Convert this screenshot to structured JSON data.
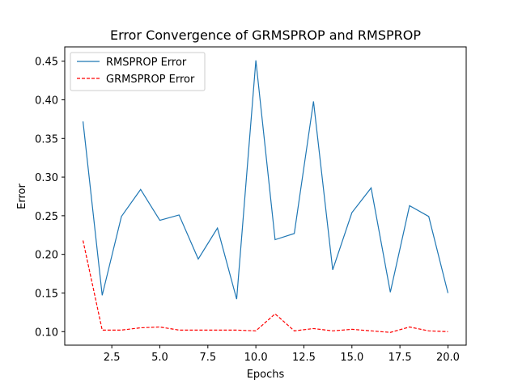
{
  "chart_data": {
    "type": "line",
    "title": "Error Convergence of GRMSPROP and RMSPROP",
    "xlabel": "Epochs",
    "ylabel": "Error",
    "xlim": [
      0.05,
      20.95
    ],
    "ylim": [
      0.0825,
      0.4685
    ],
    "xticks": [
      2.5,
      5.0,
      7.5,
      10.0,
      12.5,
      15.0,
      17.5,
      20.0
    ],
    "xtick_labels": [
      "2.5",
      "5.0",
      "7.5",
      "10.0",
      "12.5",
      "15.0",
      "17.5",
      "20.0"
    ],
    "yticks": [
      0.1,
      0.15,
      0.2,
      0.25,
      0.3,
      0.35,
      0.4,
      0.45
    ],
    "ytick_labels": [
      "0.10",
      "0.15",
      "0.20",
      "0.25",
      "0.30",
      "0.35",
      "0.40",
      "0.45"
    ],
    "grid": false,
    "legend": "upper-left",
    "x": [
      1,
      2,
      3,
      4,
      5,
      6,
      7,
      8,
      9,
      10,
      11,
      12,
      13,
      14,
      15,
      16,
      17,
      18,
      19,
      20
    ],
    "series": [
      {
        "name": "RMSPROP Error",
        "color": "#1f77b4",
        "style": "solid",
        "values": [
          0.372,
          0.147,
          0.249,
          0.284,
          0.244,
          0.251,
          0.194,
          0.234,
          0.142,
          0.451,
          0.219,
          0.227,
          0.398,
          0.18,
          0.254,
          0.286,
          0.151,
          0.263,
          0.249,
          0.15
        ]
      },
      {
        "name": "GRMSPROP Error",
        "color": "#ff0000",
        "style": "dashed",
        "values": [
          0.218,
          0.102,
          0.102,
          0.105,
          0.106,
          0.102,
          0.102,
          0.102,
          0.102,
          0.101,
          0.123,
          0.101,
          0.104,
          0.101,
          0.103,
          0.101,
          0.099,
          0.106,
          0.101,
          0.1
        ]
      }
    ]
  }
}
